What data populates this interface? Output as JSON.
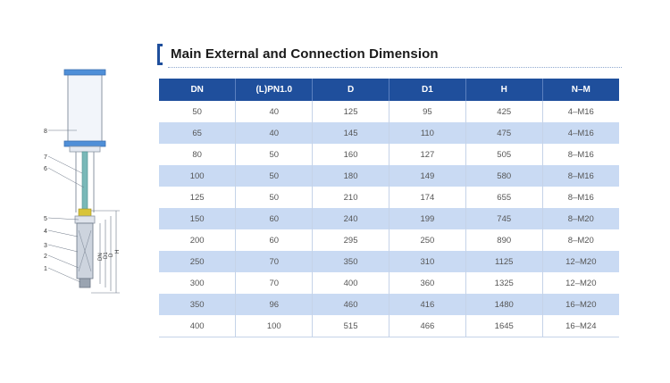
{
  "title": "Main External and Connection Dimension",
  "drawing": {
    "callouts": [
      "8",
      "7",
      "6",
      "5",
      "4",
      "3",
      "2",
      "1"
    ],
    "dimension_labels": [
      "DN",
      "D1",
      "D",
      "H"
    ]
  },
  "table": {
    "headers": [
      "DN",
      "(L)PN1.0",
      "D",
      "D1",
      "H",
      "N–M"
    ],
    "rows": [
      [
        "50",
        "40",
        "125",
        "95",
        "425",
        "4–M16"
      ],
      [
        "65",
        "40",
        "145",
        "110",
        "475",
        "4–M16"
      ],
      [
        "80",
        "50",
        "160",
        "127",
        "505",
        "8–M16"
      ],
      [
        "100",
        "50",
        "180",
        "149",
        "580",
        "8–M16"
      ],
      [
        "125",
        "50",
        "210",
        "174",
        "655",
        "8–M16"
      ],
      [
        "150",
        "60",
        "240",
        "199",
        "745",
        "8–M20"
      ],
      [
        "200",
        "60",
        "295",
        "250",
        "890",
        "8–M20"
      ],
      [
        "250",
        "70",
        "350",
        "310",
        "1125",
        "12–M20"
      ],
      [
        "300",
        "70",
        "400",
        "360",
        "1325",
        "12–M20"
      ],
      [
        "350",
        "96",
        "460",
        "416",
        "1480",
        "16–M20"
      ],
      [
        "400",
        "100",
        "515",
        "466",
        "1645",
        "16–M24"
      ]
    ]
  }
}
